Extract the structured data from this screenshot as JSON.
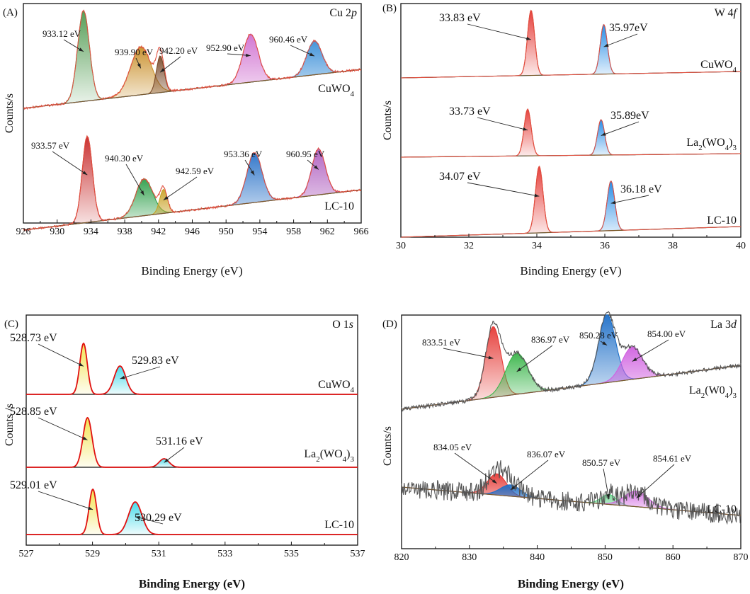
{
  "chart_data": [
    {
      "type": "line",
      "panel_label": "(A)",
      "title": "Cu 2p",
      "title_main": "Cu 2",
      "title_ital": "p",
      "xlabel": "Binding Energy (eV)",
      "ylabel": "Counts/s",
      "xlim": [
        926,
        966
      ],
      "x_reversed": false,
      "xticks": [
        "926",
        "930",
        "934",
        "938",
        "942",
        "946",
        "950",
        "954",
        "958",
        "962",
        "966"
      ],
      "tick_values": [
        926,
        930,
        934,
        938,
        942,
        946,
        950,
        954,
        958,
        962,
        966
      ],
      "samples": [
        {
          "name": "CuWO4",
          "name_main": "CuWO",
          "name_sub": "4",
          "name_after": "",
          "peaks": [
            {
              "label": "933.12 eV",
              "center": 933.12,
              "color": "#4f9a4f"
            },
            {
              "label": "939.90 eV",
              "center": 939.9,
              "color": "#c98f2a"
            },
            {
              "label": "942.20 eV",
              "center": 942.2,
              "color": "#7a4a2a"
            },
            {
              "label": "952.90 eV",
              "center": 952.9,
              "color": "#d070d0"
            },
            {
              "label": "960.46 eV",
              "center": 960.46,
              "color": "#3a8fd8"
            }
          ]
        },
        {
          "name": "LC-10",
          "name_main": "LC-10",
          "name_sub": "",
          "name_after": "",
          "peaks": [
            {
              "label": "933.57 eV",
              "center": 933.57,
              "color": "#c62828"
            },
            {
              "label": "940.30 eV",
              "center": 940.3,
              "color": "#2e9e4a"
            },
            {
              "label": "942.59 eV",
              "center": 942.59,
              "color": "#c9a227"
            },
            {
              "label": "953.36 eV",
              "center": 953.36,
              "color": "#2a72c8"
            },
            {
              "label": "960.95 eV",
              "center": 960.95,
              "color": "#b060c0"
            }
          ]
        }
      ]
    },
    {
      "type": "line",
      "panel_label": "(B)",
      "title": "W 4f",
      "title_main": "W 4",
      "title_ital": "f",
      "xlabel": "Binding Energy (eV)",
      "ylabel": "Counts/s",
      "xlim": [
        30,
        40
      ],
      "x_reversed": false,
      "xticks": [
        "30",
        "32",
        "34",
        "36",
        "38",
        "40"
      ],
      "tick_values": [
        30,
        32,
        34,
        36,
        38,
        40
      ],
      "samples": [
        {
          "name": "CuWO4",
          "name_main": "CuWO",
          "name_sub": "4",
          "name_after": "",
          "peaks": [
            {
              "label": "33.83 eV",
              "center": 33.83,
              "color": "#e53935"
            },
            {
              "label": "35.97eV",
              "center": 35.97,
              "color": "#1e88e5"
            }
          ]
        },
        {
          "name": "La2(WO4)3",
          "name_main": "La",
          "name_sub": "2",
          "name_after": "(WO4)3",
          "name_mid": "(WO",
          "name_sub2": "4",
          "name_end": ")",
          "name_sub3": "3",
          "peaks": [
            {
              "label": "33.73 eV",
              "center": 33.73,
              "color": "#e53935"
            },
            {
              "label": "35.89eV",
              "center": 35.89,
              "color": "#1e88e5"
            }
          ]
        },
        {
          "name": "LC-10",
          "name_main": "LC-10",
          "name_sub": "",
          "name_after": "",
          "peaks": [
            {
              "label": "34.07 eV",
              "center": 34.07,
              "color": "#e53935"
            },
            {
              "label": "36.18 eV",
              "center": 36.18,
              "color": "#1e88e5"
            }
          ]
        }
      ]
    },
    {
      "type": "line",
      "panel_label": "(C)",
      "title": "O 1s",
      "title_main": "O 1",
      "title_ital": "s",
      "xlabel": "Binding Energy (eV)",
      "ylabel": "Counts /s",
      "xlim": [
        527,
        537
      ],
      "x_reversed": false,
      "xticks": [
        "527",
        "529",
        "531",
        "533",
        "535",
        "537"
      ],
      "tick_values": [
        527,
        529,
        531,
        533,
        535,
        537
      ],
      "samples": [
        {
          "name": "CuWO4",
          "name_main": "CuWO",
          "name_sub": "4",
          "name_after": "",
          "peaks": [
            {
              "label": "528.73 eV",
              "center": 528.73,
              "color": "#f2e24a"
            },
            {
              "label": "529.83 eV",
              "center": 529.83,
              "color": "#3fd9e8"
            }
          ]
        },
        {
          "name": "La2(WO4)3",
          "name_main": "La",
          "name_sub": "2",
          "name_after": "(WO4)3",
          "name_mid": "(WO",
          "name_sub2": "4",
          "name_end": ")",
          "name_sub3": "3",
          "peaks": [
            {
              "label": "528.85 eV",
              "center": 528.85,
              "color": "#f2e24a"
            },
            {
              "label": "531.16 eV",
              "center": 531.16,
              "color": "#3fd9e8"
            }
          ]
        },
        {
          "name": "LC-10",
          "name_main": "LC-10",
          "name_sub": "",
          "name_after": "",
          "peaks": [
            {
              "label": "529.01 eV",
              "center": 529.01,
              "color": "#f2e24a"
            },
            {
              "label": "530.29 eV",
              "center": 530.29,
              "color": "#3fd9e8"
            }
          ]
        }
      ]
    },
    {
      "type": "line",
      "panel_label": "(D)",
      "title": "La 3d",
      "title_main": "La 3",
      "title_ital": "d",
      "xlabel": "Binding Energy (eV)",
      "ylabel": "Counts/s",
      "xlim": [
        820,
        870
      ],
      "x_reversed": false,
      "xticks": [
        "820",
        "830",
        "840",
        "850",
        "860",
        "870"
      ],
      "tick_values": [
        820,
        830,
        840,
        850,
        860,
        870
      ],
      "samples": [
        {
          "name": "La2(W04)3",
          "name_main": "La",
          "name_sub": "2",
          "name_after": "(W04)3",
          "name_mid": "(W0",
          "name_sub2": "4",
          "name_end": ")",
          "name_sub3": "3",
          "peaks": [
            {
              "label": "833.51 eV",
              "center": 833.51,
              "color": "#e53935"
            },
            {
              "label": "836.97 eV",
              "center": 836.97,
              "color": "#3ab54a"
            },
            {
              "label": "850.28 eV",
              "center": 850.28,
              "color": "#1e6fc8"
            },
            {
              "label": "854.00 eV",
              "center": 854.0,
              "color": "#d060e0"
            }
          ]
        },
        {
          "name": "LC-10",
          "name_main": "LC-10",
          "name_sub": "",
          "name_after": "",
          "peaks": [
            {
              "label": "834.05 eV",
              "center": 834.05,
              "color": "#e53935"
            },
            {
              "label": "836.07 eV",
              "center": 836.07,
              "color": "#1e6fc8"
            },
            {
              "label": "850.57 eV",
              "center": 850.57,
              "color": "#4fd07a"
            },
            {
              "label": "854.61 eV",
              "center": 854.61,
              "color": "#d060e0"
            }
          ]
        }
      ]
    }
  ]
}
